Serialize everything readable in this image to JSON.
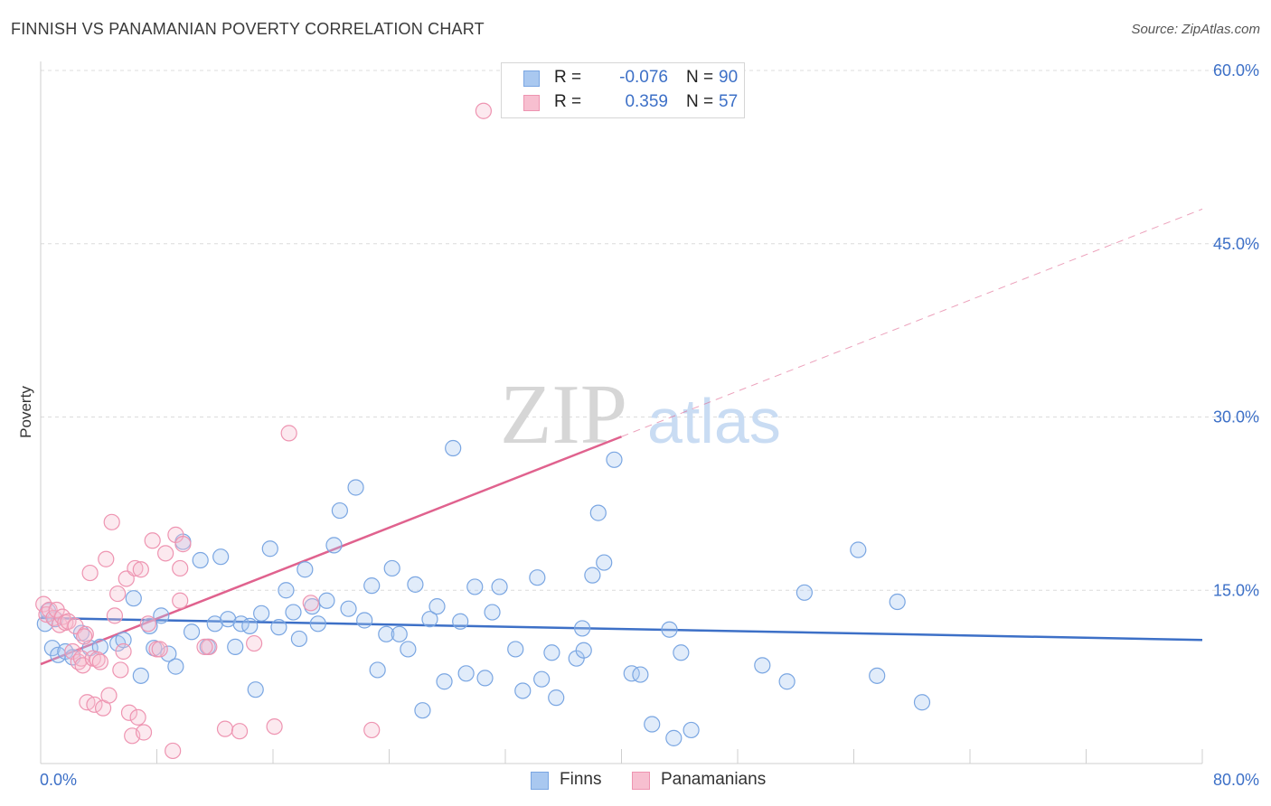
{
  "header": {
    "title": "FINNISH VS PANAMANIAN POVERTY CORRELATION CHART",
    "source": "Source: ZipAtlas.com"
  },
  "stats": [
    {
      "r_label": "R =",
      "r_value": "-0.076",
      "n_label": "N =",
      "n_value": "90",
      "fill": "#a9c8f0",
      "stroke": "#7aa6e2"
    },
    {
      "r_label": "R =",
      "r_value": "0.359",
      "n_label": "N =",
      "n_value": "57",
      "fill": "#f7bfd0",
      "stroke": "#ee94b1"
    }
  ],
  "legend": [
    {
      "label": "Finns",
      "fill": "#a9c8f0",
      "stroke": "#7aa6e2"
    },
    {
      "label": "Panamanians",
      "fill": "#f7bfd0",
      "stroke": "#ee94b1"
    }
  ],
  "watermark": {
    "zip": "ZIP",
    "atlas": "atlas"
  },
  "chart_data": {
    "type": "scatter",
    "ylabel": "Poverty",
    "xlim": [
      0,
      80
    ],
    "ylim": [
      0,
      60
    ],
    "x_tick_labels": [
      {
        "value": 0,
        "label": "0.0%"
      },
      {
        "value": 80,
        "label": "80.0%"
      }
    ],
    "y_tick_labels": [
      {
        "value": 15,
        "label": "15.0%"
      },
      {
        "value": 30,
        "label": "30.0%"
      },
      {
        "value": 45,
        "label": "45.0%"
      },
      {
        "value": 60,
        "label": "60.0%"
      }
    ],
    "y_gridlines": [
      15,
      30,
      45,
      60
    ],
    "x_ticks": [
      0,
      8,
      16,
      24,
      32,
      40,
      48,
      56,
      64,
      72,
      80
    ],
    "colors": {
      "finns": "#3d70c7",
      "panamanians": "#e0628e",
      "tick_label": "#3d70c7"
    },
    "series": [
      {
        "name": "Finns",
        "color": "#7aa6e2",
        "points": [
          [
            0.3,
            12.1
          ],
          [
            0.5,
            13.2
          ],
          [
            0.8,
            10.0
          ],
          [
            1.0,
            12.5
          ],
          [
            1.2,
            9.4
          ],
          [
            1.7,
            9.7
          ],
          [
            2.2,
            9.2
          ],
          [
            2.8,
            11.3
          ],
          [
            3.4,
            10.0
          ],
          [
            4.1,
            10.1
          ],
          [
            5.3,
            10.4
          ],
          [
            5.7,
            10.7
          ],
          [
            6.4,
            14.3
          ],
          [
            6.9,
            7.6
          ],
          [
            7.5,
            11.9
          ],
          [
            7.8,
            10.0
          ],
          [
            8.3,
            12.8
          ],
          [
            8.8,
            9.5
          ],
          [
            9.3,
            8.4
          ],
          [
            9.8,
            19.2
          ],
          [
            10.4,
            11.4
          ],
          [
            11.0,
            17.6
          ],
          [
            11.5,
            10.1
          ],
          [
            12.0,
            12.1
          ],
          [
            12.4,
            17.9
          ],
          [
            12.9,
            12.5
          ],
          [
            13.4,
            10.1
          ],
          [
            13.8,
            12.1
          ],
          [
            14.4,
            11.9
          ],
          [
            14.8,
            6.4
          ],
          [
            15.2,
            13.0
          ],
          [
            15.8,
            18.6
          ],
          [
            16.4,
            11.8
          ],
          [
            16.9,
            15.0
          ],
          [
            17.4,
            13.1
          ],
          [
            17.8,
            10.8
          ],
          [
            18.2,
            16.8
          ],
          [
            18.7,
            13.6
          ],
          [
            19.1,
            12.1
          ],
          [
            19.7,
            14.1
          ],
          [
            20.2,
            18.9
          ],
          [
            20.6,
            21.9
          ],
          [
            21.2,
            13.4
          ],
          [
            21.7,
            23.9
          ],
          [
            22.3,
            12.4
          ],
          [
            22.8,
            15.4
          ],
          [
            23.2,
            8.1
          ],
          [
            23.8,
            11.2
          ],
          [
            24.2,
            16.9
          ],
          [
            24.7,
            11.2
          ],
          [
            25.3,
            9.9
          ],
          [
            25.8,
            15.5
          ],
          [
            26.3,
            4.6
          ],
          [
            26.8,
            12.5
          ],
          [
            27.3,
            13.6
          ],
          [
            27.8,
            7.1
          ],
          [
            28.4,
            27.3
          ],
          [
            28.9,
            12.3
          ],
          [
            29.3,
            7.8
          ],
          [
            29.9,
            15.3
          ],
          [
            30.6,
            7.4
          ],
          [
            31.1,
            13.1
          ],
          [
            31.6,
            15.3
          ],
          [
            32.7,
            9.9
          ],
          [
            33.2,
            6.3
          ],
          [
            34.2,
            16.1
          ],
          [
            34.5,
            7.3
          ],
          [
            35.2,
            9.6
          ],
          [
            35.5,
            5.7
          ],
          [
            36.9,
            9.1
          ],
          [
            37.4,
            9.8
          ],
          [
            37.3,
            11.7
          ],
          [
            38.0,
            16.3
          ],
          [
            38.8,
            17.4
          ],
          [
            38.4,
            21.7
          ],
          [
            39.5,
            26.3
          ],
          [
            40.7,
            7.8
          ],
          [
            41.3,
            7.7
          ],
          [
            42.1,
            3.4
          ],
          [
            43.3,
            11.6
          ],
          [
            43.6,
            2.2
          ],
          [
            44.1,
            9.6
          ],
          [
            44.8,
            2.9
          ],
          [
            49.7,
            8.5
          ],
          [
            51.4,
            7.1
          ],
          [
            52.6,
            14.8
          ],
          [
            56.3,
            18.5
          ],
          [
            57.6,
            7.6
          ],
          [
            59.0,
            14.0
          ],
          [
            60.7,
            5.3
          ]
        ]
      },
      {
        "name": "Panamanians",
        "color": "#ee94b1",
        "points": [
          [
            0.2,
            13.8
          ],
          [
            0.4,
            12.9
          ],
          [
            0.6,
            13.3
          ],
          [
            0.9,
            12.6
          ],
          [
            1.1,
            13.3
          ],
          [
            1.3,
            12.0
          ],
          [
            1.5,
            12.7
          ],
          [
            1.7,
            12.2
          ],
          [
            1.9,
            12.3
          ],
          [
            2.2,
            9.7
          ],
          [
            2.4,
            11.9
          ],
          [
            2.6,
            8.8
          ],
          [
            2.8,
            9.1
          ],
          [
            2.9,
            8.5
          ],
          [
            3.1,
            11.2
          ],
          [
            3.2,
            5.3
          ],
          [
            3.4,
            16.5
          ],
          [
            3.6,
            9.1
          ],
          [
            3.7,
            5.1
          ],
          [
            3.9,
            9.0
          ],
          [
            4.1,
            8.8
          ],
          [
            4.3,
            4.8
          ],
          [
            4.5,
            17.7
          ],
          [
            4.7,
            5.9
          ],
          [
            4.9,
            20.9
          ],
          [
            5.1,
            12.8
          ],
          [
            5.3,
            14.7
          ],
          [
            5.5,
            8.1
          ],
          [
            5.7,
            9.7
          ],
          [
            5.9,
            16.0
          ],
          [
            6.1,
            4.4
          ],
          [
            6.3,
            2.4
          ],
          [
            6.5,
            16.9
          ],
          [
            6.7,
            4.0
          ],
          [
            6.9,
            16.8
          ],
          [
            7.1,
            2.7
          ],
          [
            7.4,
            12.1
          ],
          [
            7.7,
            19.3
          ],
          [
            8.0,
            9.9
          ],
          [
            8.2,
            9.9
          ],
          [
            8.6,
            18.2
          ],
          [
            9.1,
            1.1
          ],
          [
            9.3,
            19.8
          ],
          [
            9.6,
            16.9
          ],
          [
            9.8,
            19.0
          ],
          [
            9.6,
            14.1
          ],
          [
            11.6,
            10.1
          ],
          [
            11.3,
            10.1
          ],
          [
            12.7,
            3.0
          ],
          [
            13.7,
            2.8
          ],
          [
            14.7,
            10.4
          ],
          [
            16.1,
            3.2
          ],
          [
            17.1,
            28.6
          ],
          [
            18.6,
            13.9
          ],
          [
            22.8,
            2.9
          ],
          [
            30.5,
            56.5
          ],
          [
            3.0,
            11.0
          ]
        ]
      }
    ],
    "trend_lines": [
      {
        "series": "Finns",
        "x": [
          0,
          80
        ],
        "y": [
          12.6,
          10.7
        ],
        "style": "solid"
      },
      {
        "series": "Panamanians",
        "x": [
          0,
          40
        ],
        "y": [
          8.6,
          28.3
        ],
        "style": "solid"
      },
      {
        "series": "Panamanians",
        "x": [
          40,
          80
        ],
        "y": [
          28.3,
          48.0
        ],
        "style": "dashed"
      }
    ]
  }
}
